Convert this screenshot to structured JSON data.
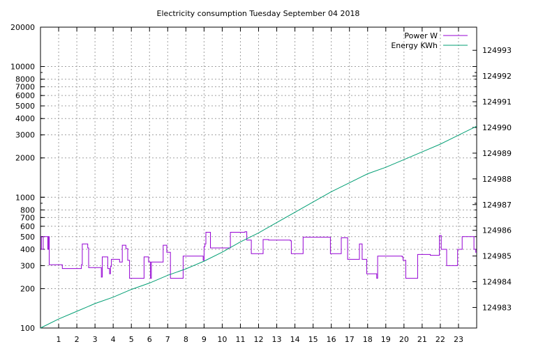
{
  "chart_data": {
    "type": "line",
    "title": "Electricity consumption Tuesday September 04 2018",
    "xlabel": "",
    "ylabel": "",
    "y2label": "",
    "x_range": [
      0,
      24
    ],
    "x_ticks": [
      1,
      2,
      3,
      4,
      5,
      6,
      7,
      8,
      9,
      10,
      11,
      12,
      13,
      14,
      15,
      16,
      17,
      18,
      19,
      20,
      21,
      22,
      23
    ],
    "y_scale": "log",
    "y_range": [
      100,
      20000
    ],
    "y_tick_labels": [
      {
        "value": 100,
        "label": "100"
      },
      {
        "value": 200,
        "label": "200"
      },
      {
        "value": 300,
        "label": "300"
      },
      {
        "value": 400,
        "label": "400"
      },
      {
        "value": 500,
        "label": "500"
      },
      {
        "value": 600,
        "label": "600"
      },
      {
        "value": 700,
        "label": "700"
      },
      {
        "value": 800,
        "label": "800"
      },
      {
        "value": 1000,
        "label": "1000"
      },
      {
        "value": 2000,
        "label": "2000"
      },
      {
        "value": 3000,
        "label": "3000"
      },
      {
        "value": 4000,
        "label": "4000"
      },
      {
        "value": 5000,
        "label": "5000"
      },
      {
        "value": 6000,
        "label": "6000"
      },
      {
        "value": 7000,
        "label": "7000"
      },
      {
        "value": 8000,
        "label": "8000"
      },
      {
        "value": 10000,
        "label": "10000"
      },
      {
        "value": 20000,
        "label": "20000"
      }
    ],
    "y2_scale": "linear",
    "y2_range": [
      124982.2,
      124993.9
    ],
    "y2_ticks": [
      124983,
      124984,
      124985,
      124986,
      124987,
      124988,
      124989,
      124990,
      124991,
      124992,
      124993
    ],
    "grid": true,
    "legend_position": "top-right",
    "series": [
      {
        "name": "Power W",
        "axis": "left",
        "color": "#9400d3",
        "step": true,
        "points": [
          [
            0.0,
            500
          ],
          [
            0.05,
            400
          ],
          [
            0.15,
            500
          ],
          [
            0.4,
            400
          ],
          [
            0.45,
            500
          ],
          [
            0.48,
            305
          ],
          [
            1.2,
            285
          ],
          [
            2.25,
            305
          ],
          [
            2.3,
            440
          ],
          [
            2.6,
            410
          ],
          [
            2.65,
            290
          ],
          [
            3.35,
            245
          ],
          [
            3.4,
            350
          ],
          [
            3.7,
            285
          ],
          [
            3.8,
            260
          ],
          [
            3.85,
            295
          ],
          [
            3.9,
            335
          ],
          [
            4.35,
            320
          ],
          [
            4.5,
            430
          ],
          [
            4.7,
            405
          ],
          [
            4.8,
            330
          ],
          [
            4.9,
            240
          ],
          [
            5.7,
            350
          ],
          [
            5.95,
            320
          ],
          [
            6.05,
            240
          ],
          [
            6.1,
            320
          ],
          [
            6.75,
            430
          ],
          [
            6.95,
            380
          ],
          [
            7.15,
            240
          ],
          [
            7.85,
            355
          ],
          [
            8.95,
            330
          ],
          [
            9.0,
            420
          ],
          [
            9.05,
            440
          ],
          [
            9.1,
            540
          ],
          [
            9.35,
            410
          ],
          [
            10.45,
            540
          ],
          [
            11.25,
            545
          ],
          [
            11.35,
            470
          ],
          [
            11.6,
            370
          ],
          [
            12.25,
            475
          ],
          [
            12.55,
            470
          ],
          [
            13.75,
            465
          ],
          [
            13.8,
            370
          ],
          [
            14.45,
            495
          ],
          [
            15.95,
            370
          ],
          [
            16.55,
            490
          ],
          [
            16.9,
            335
          ],
          [
            17.55,
            440
          ],
          [
            17.7,
            335
          ],
          [
            17.95,
            260
          ],
          [
            18.5,
            240
          ],
          [
            18.55,
            355
          ],
          [
            19.9,
            350
          ],
          [
            19.95,
            330
          ],
          [
            20.1,
            240
          ],
          [
            20.75,
            365
          ],
          [
            21.45,
            360
          ],
          [
            21.95,
            510
          ],
          [
            22.05,
            400
          ],
          [
            22.35,
            300
          ],
          [
            22.95,
            400
          ],
          [
            23.2,
            500
          ],
          [
            23.85,
            400
          ],
          [
            23.95,
            380
          ],
          [
            24.0,
            380
          ]
        ]
      },
      {
        "name": "Energy KWh",
        "axis": "right",
        "color": "#009e73",
        "step": false,
        "points": [
          [
            0,
            124982.2
          ],
          [
            1,
            124982.55
          ],
          [
            2,
            124982.85
          ],
          [
            3,
            124983.15
          ],
          [
            4,
            124983.4
          ],
          [
            5,
            124983.7
          ],
          [
            6,
            124983.95
          ],
          [
            7,
            124984.25
          ],
          [
            8,
            124984.5
          ],
          [
            9,
            124984.8
          ],
          [
            10,
            124985.15
          ],
          [
            11,
            124985.55
          ],
          [
            12,
            124985.9
          ],
          [
            13,
            124986.3
          ],
          [
            14,
            124986.7
          ],
          [
            15,
            124987.1
          ],
          [
            16,
            124987.5
          ],
          [
            17,
            124987.85
          ],
          [
            18,
            124988.2
          ],
          [
            19,
            124988.45
          ],
          [
            20,
            124988.75
          ],
          [
            21,
            124989.05
          ],
          [
            22,
            124989.35
          ],
          [
            23,
            124989.7
          ],
          [
            24,
            124990.05
          ]
        ]
      }
    ]
  }
}
